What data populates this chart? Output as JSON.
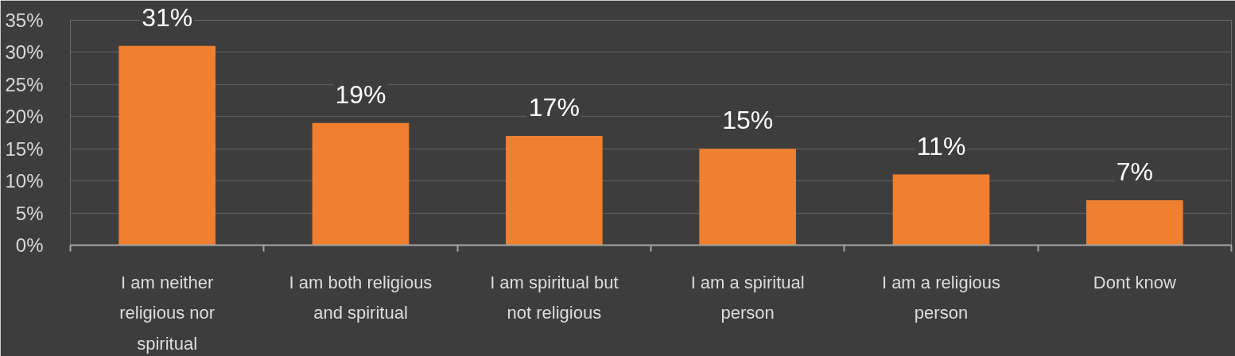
{
  "chart_data": {
    "type": "bar",
    "categories": [
      "I am neither religious nor spiritual",
      "I am both religious and spiritual",
      "I am spiritual but not religious",
      "I am a spiritual person",
      "I am a religious person",
      "Dont know"
    ],
    "values": [
      31,
      19,
      17,
      15,
      11,
      7
    ],
    "value_labels": [
      "31%",
      "19%",
      "17%",
      "15%",
      "11%",
      "7%"
    ],
    "color": "#f07f2f",
    "ylim": [
      0,
      35
    ],
    "yticks": [
      {
        "value": 0,
        "label": "0%"
      },
      {
        "value": 5,
        "label": "5%"
      },
      {
        "value": 10,
        "label": "10%"
      },
      {
        "value": 15,
        "label": "15%"
      },
      {
        "value": 20,
        "label": "20%"
      },
      {
        "value": 25,
        "label": "25%"
      },
      {
        "value": 30,
        "label": "30%"
      },
      {
        "value": 35,
        "label": "35%"
      }
    ],
    "grid": "y"
  }
}
